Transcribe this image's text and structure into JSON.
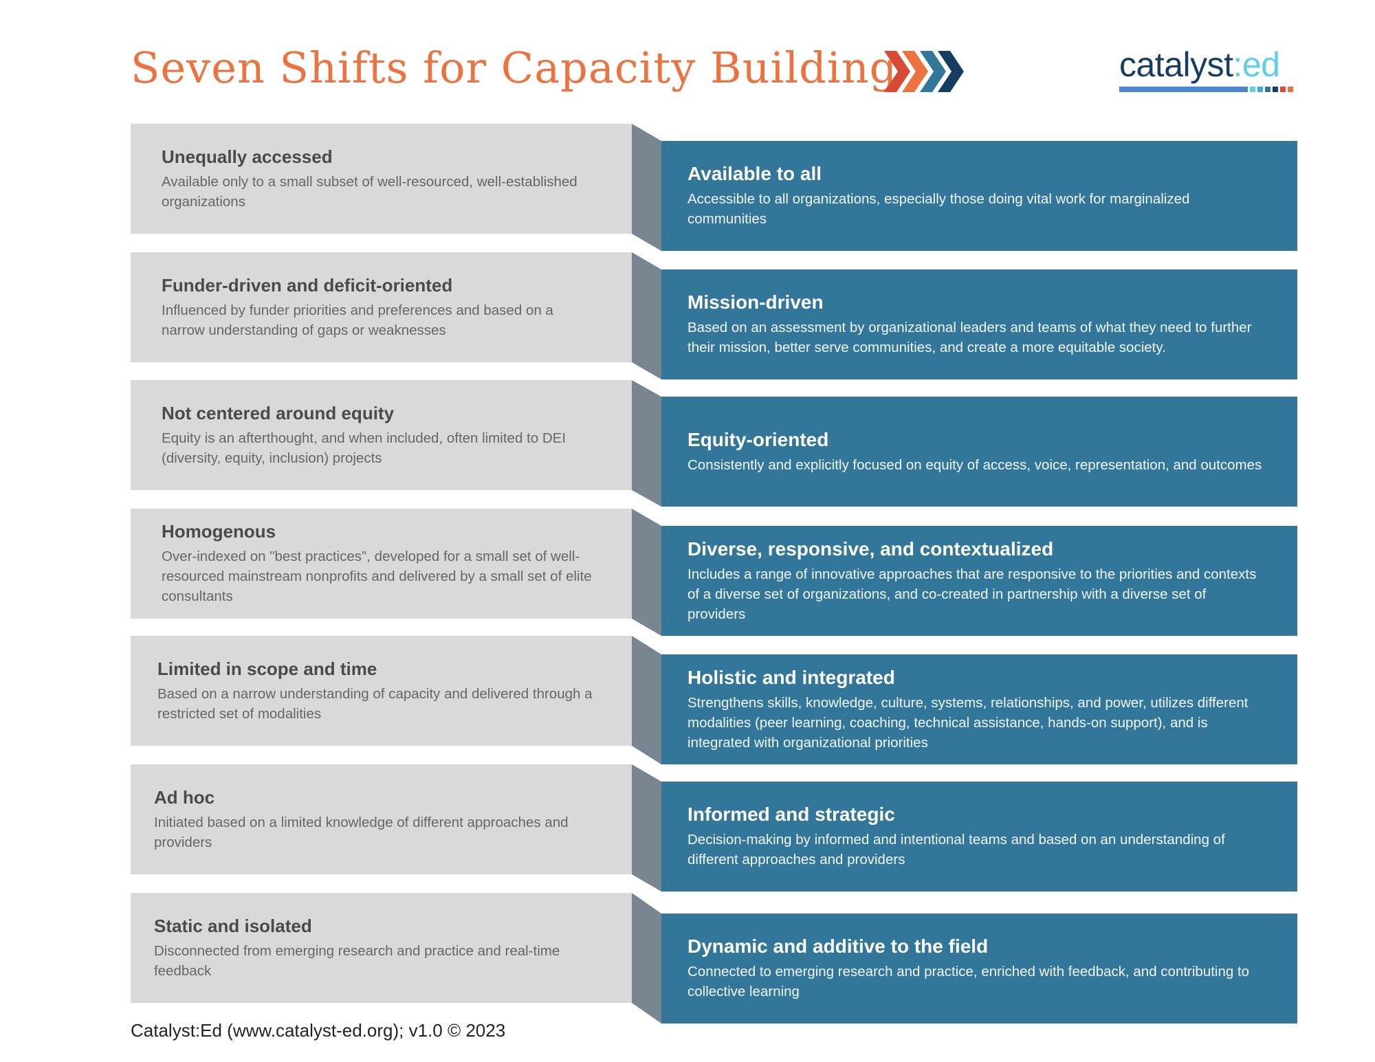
{
  "header": {
    "title": "Seven Shifts for Capacity Building",
    "chevron_colors": [
      "#d64a35",
      "#ec7340",
      "#32769a",
      "#163e63"
    ],
    "logo": {
      "part1": "catalyst",
      "part2": ":ed"
    }
  },
  "colors": {
    "left_box": "#d9d9d9",
    "side": "#7a8592",
    "right_box": "#32769a",
    "title": "#ec7340"
  },
  "shifts": [
    {
      "from_title": "Unequally accessed",
      "from_desc": "Available only to a small subset of well-resourced, well-established organizations",
      "to_title": "Available to all",
      "to_desc": "Accessible to all organizations, especially those doing vital work for marginalized communities"
    },
    {
      "from_title": "Funder-driven and deficit-oriented",
      "from_desc": "Influenced by funder priorities and preferences and based on a narrow understanding of gaps or weaknesses",
      "to_title": "Mission-driven",
      "to_desc": "Based on an assessment by organizational leaders and teams of what they need to further their mission, better serve communities, and create a more equitable society."
    },
    {
      "from_title": "Not centered around equity",
      "from_desc": "Equity is an afterthought, and when included, often limited to DEI (diversity, equity, inclusion) projects",
      "to_title": "Equity-oriented",
      "to_desc": "Consistently and explicitly focused on equity of access, voice, representation, and outcomes"
    },
    {
      "from_title": "Homogenous",
      "from_desc": "Over-indexed on \"best practices\", developed for a small set of well-resourced mainstream nonprofits and delivered by a small set of elite consultants",
      "to_title": "Diverse, responsive, and contextualized",
      "to_desc": "Includes a range of innovative approaches that are responsive to the priorities and contexts of a diverse set of organizations, and co-created in partnership with a diverse set of providers"
    },
    {
      "from_title": "Limited in scope and time",
      "from_desc": "Based on a narrow understanding of capacity and delivered through a restricted set of modalities",
      "to_title": "Holistic and integrated",
      "to_desc": "Strengthens skills, knowledge, culture, systems, relationships, and power, utilizes different modalities (peer learning, coaching, technical assistance, hands-on support), and is integrated with organizational priorities"
    },
    {
      "from_title": "Ad hoc",
      "from_desc": "Initiated based on a limited knowledge of different approaches and providers",
      "to_title": "Informed and strategic",
      "to_desc": "Decision-making by informed and intentional teams and based on an understanding of different approaches and providers"
    },
    {
      "from_title": "Static and isolated",
      "from_desc": "Disconnected from emerging research and practice and real-time feedback",
      "to_title": "Dynamic and additive to the field",
      "to_desc": "Connected to emerging research and practice, enriched with feedback, and contributing to collective learning"
    }
  ],
  "footer": "Catalyst:Ed (www.catalyst-ed.org); v1.0 © 2023"
}
